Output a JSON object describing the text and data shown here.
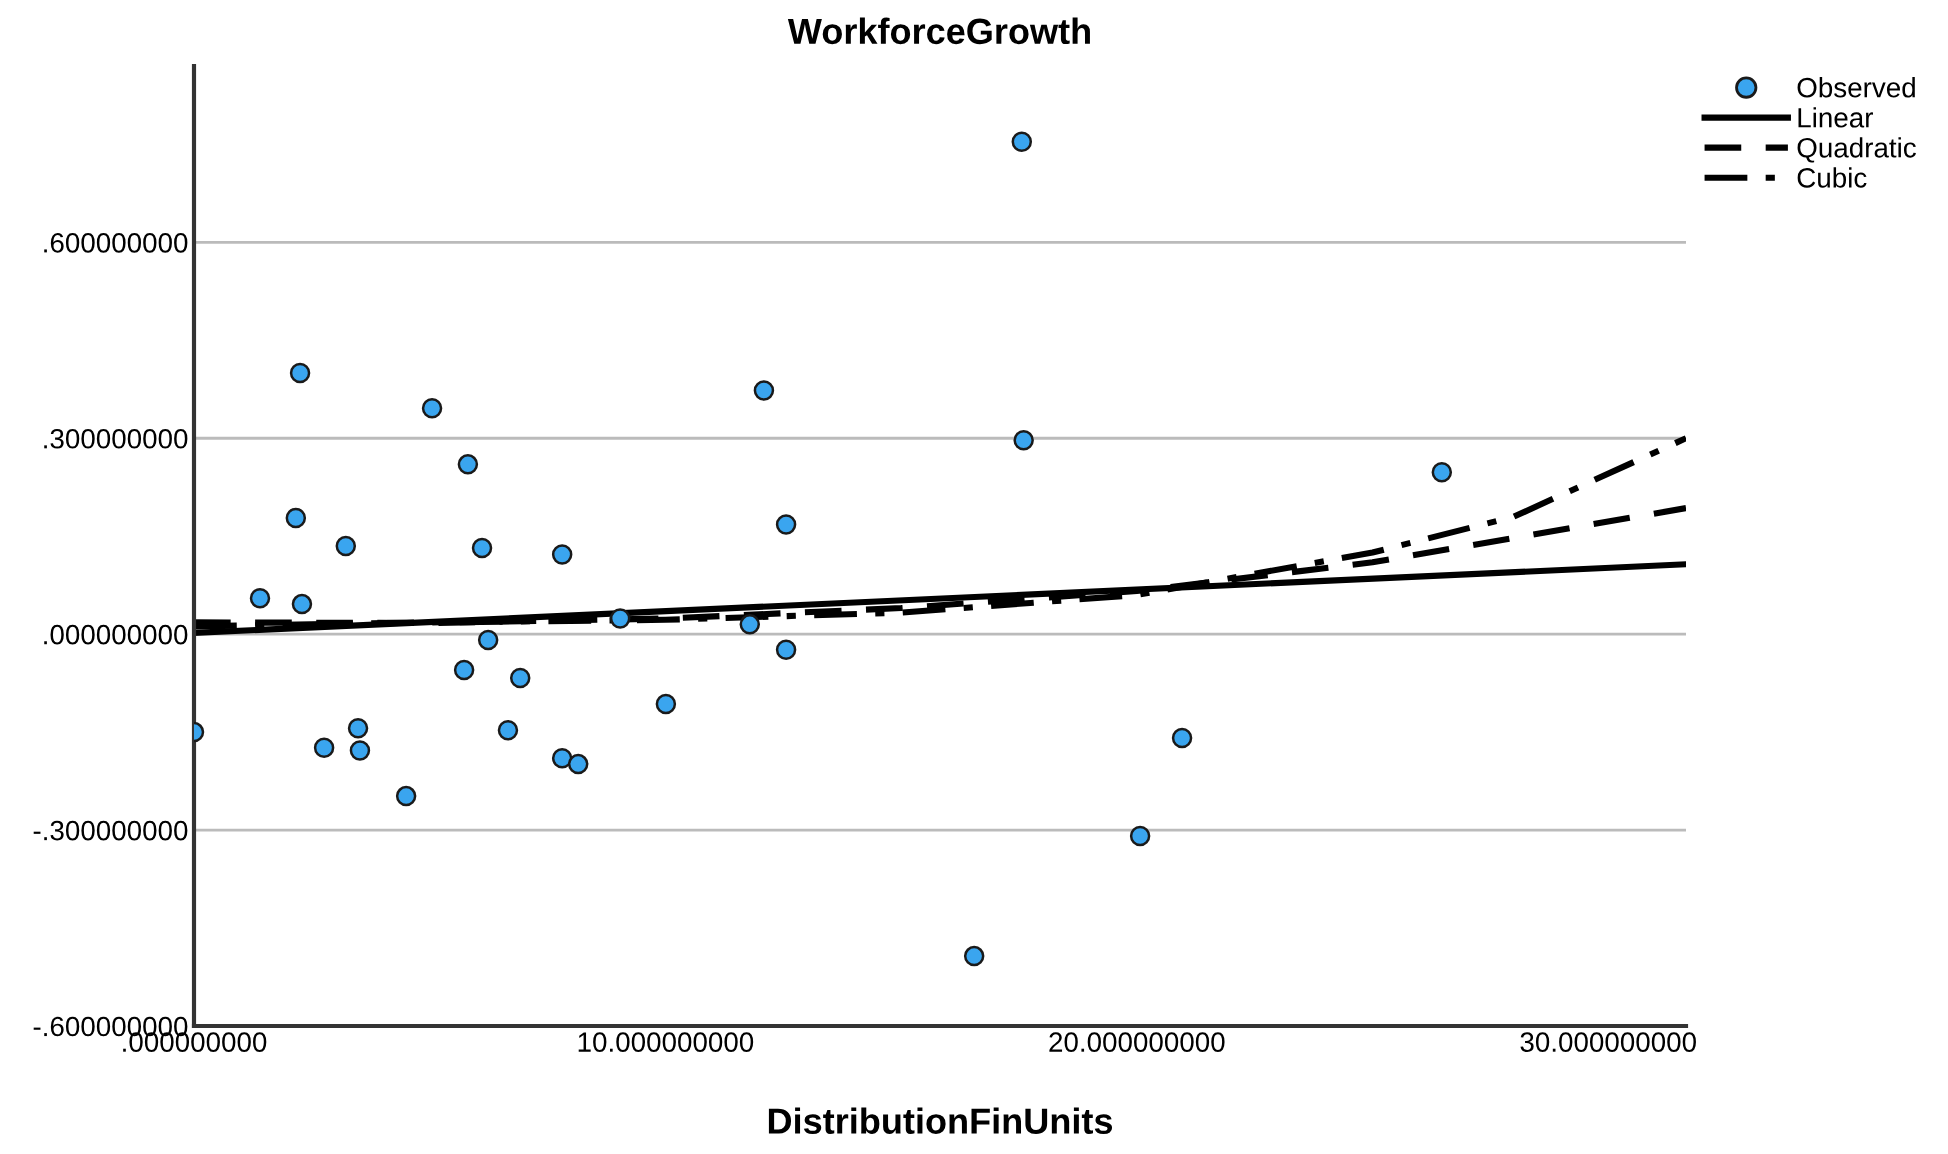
{
  "chart_data": {
    "type": "scatter",
    "title": "WorkforceGrowth",
    "xlabel": "DistributionFinUnits",
    "xlim": [
      0,
      31.65
    ],
    "ylim": [
      -0.6,
      0.87
    ],
    "xticks": [
      {
        "value": 0,
        "label": ".000000000"
      },
      {
        "value": 10,
        "label": "10.000000000"
      },
      {
        "value": 20,
        "label": "20.000000000"
      },
      {
        "value": 30,
        "label": "30.000000000"
      }
    ],
    "yticks": [
      {
        "value": -0.6,
        "label": "-.600000000"
      },
      {
        "value": -0.3,
        "label": "-.300000000"
      },
      {
        "value": 0,
        "label": ".000000000"
      },
      {
        "value": 0.3,
        "label": ".300000000"
      },
      {
        "value": 0.6,
        "label": ".600000000"
      }
    ],
    "grid": "y",
    "legend": "top right",
    "series": [
      {
        "name": "Observed",
        "marker": "circle",
        "color": "#3aa5ef",
        "x": [
          0,
          1.4,
          2.25,
          2.16,
          2.29,
          3.22,
          2.76,
          3.48,
          3.52,
          4.5,
          5.05,
          5.73,
          5.81,
          6.11,
          6.24,
          6.66,
          6.92,
          7.81,
          7.81,
          8.15,
          10.01,
          9.04,
          11.79,
          12.56,
          12.09,
          12.56,
          17.56,
          17.6,
          16.55,
          20.07,
          20.96,
          26.47
        ],
        "values": [
          -0.15,
          0.055,
          0.4,
          0.178,
          0.046,
          0.135,
          -0.174,
          -0.144,
          -0.178,
          -0.248,
          0.346,
          -0.055,
          0.26,
          0.132,
          -0.009,
          -0.147,
          -0.067,
          0.122,
          -0.19,
          -0.199,
          -0.107,
          0.024,
          0.015,
          -0.024,
          0.373,
          0.168,
          0.754,
          0.297,
          -0.493,
          -0.309,
          -0.159,
          0.248
        ]
      },
      {
        "name": "Linear",
        "type": "line",
        "line_style": "solid",
        "color": "#000000",
        "x": [
          0,
          31.65
        ],
        "values": [
          0.002,
          0.107
        ]
      },
      {
        "name": "Quadratic",
        "type": "line",
        "line_style": "dashed",
        "color": "#000000",
        "x": [
          0,
          5,
          10,
          15,
          20,
          25,
          31.65
        ],
        "values": [
          0.018,
          0.017,
          0.024,
          0.04,
          0.066,
          0.11,
          0.193
        ]
      },
      {
        "name": "Cubic",
        "type": "line",
        "line_style": "dashdot",
        "color": "#000000",
        "x": [
          0,
          5,
          10,
          15,
          20,
          25,
          28,
          31.65
        ],
        "values": [
          0.012,
          0.018,
          0.022,
          0.033,
          0.06,
          0.125,
          0.18,
          0.3
        ]
      }
    ]
  }
}
